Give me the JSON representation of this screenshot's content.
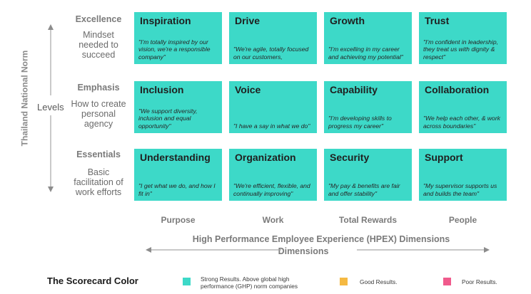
{
  "side_title": "Thailand National Norm",
  "levels_word": "Levels",
  "levels": [
    {
      "name": "Excellence",
      "desc": [
        "Mindset",
        "needed to",
        "succeed"
      ]
    },
    {
      "name": "Emphasis",
      "desc": [
        "How to create",
        "personal",
        "agency"
      ]
    },
    {
      "name": "Essentials",
      "desc": [
        "Basic",
        "facilitation of",
        "work efforts"
      ]
    }
  ],
  "columns": [
    "Purpose",
    "Work",
    "Total Rewards",
    "People"
  ],
  "cards": [
    [
      {
        "title": "Inspiration",
        "quote": "\"I'm totally inspired by our vision, we're a responsible company\""
      },
      {
        "title": "Drive",
        "quote": "\"We're agile, totally focused on our customers,"
      },
      {
        "title": "Growth",
        "quote": "\"I'm excelling in my career and achieving my potential\""
      },
      {
        "title": "Trust",
        "quote": "\"I'm confident in leadership, they treat us with dignity & respect\""
      }
    ],
    [
      {
        "title": "Inclusion",
        "quote": "\"We support diversity, inclusion and equal opportunity\""
      },
      {
        "title": "Voice",
        "quote": "\"I have a say in what we do\""
      },
      {
        "title": "Capability",
        "quote": "\"I'm developing skills to progress my career\""
      },
      {
        "title": "Collaboration",
        "quote": "\"We help each other, & work across boundaries\""
      }
    ],
    [
      {
        "title": "Understanding",
        "quote": "\"I get what we do, and how I fit in\""
      },
      {
        "title": "Organization",
        "quote": "\"We're efficient, flexible, and continually improving\""
      },
      {
        "title": "Security",
        "quote": "\"My pay & benefits are fair and offer stability\""
      },
      {
        "title": "Support",
        "quote": "\"My supervisor supports us and builds the team\""
      }
    ]
  ],
  "bottom": {
    "title": "High Performance Employee Experience (HPEX) Dimensions",
    "subtitle": "Dimensions"
  },
  "legend": {
    "title": "The Scorecard Color",
    "items": [
      {
        "color": "#3dd9c8",
        "text_line1": "Strong Results. Above global high",
        "text_line2": "performance (GHP) norm companies"
      },
      {
        "color": "#f5b942",
        "text_line1": "Good Results.",
        "text_line2": ""
      },
      {
        "color": "#f05a8c",
        "text_line1": "Poor Results.",
        "text_line2": ""
      }
    ]
  },
  "colors": {
    "card": "#3dd9c8",
    "arrow": "#a6a6a6"
  }
}
